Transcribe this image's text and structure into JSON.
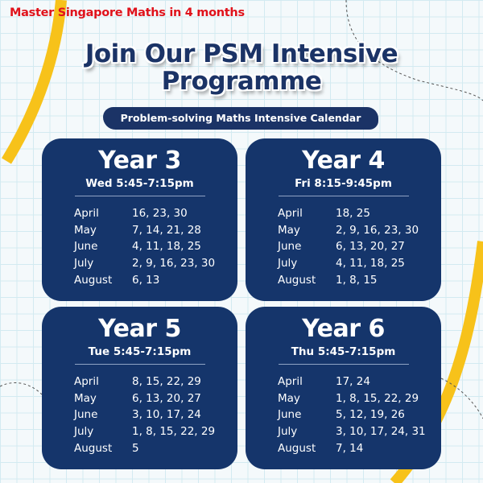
{
  "tagline": "Master Singapore Maths in 4 months",
  "title_line1": "Join Our PSM Intensive",
  "title_line2": "Programme",
  "subtitle": "Problem-solving Maths Intensive Calendar",
  "colors": {
    "navy": "#15356b",
    "accent_red": "#e0121b",
    "accent_yellow": "#f7c21a"
  },
  "cards": [
    {
      "year": "Year 3",
      "time": "Wed 5:45-7:15pm",
      "rows": [
        {
          "month": "April",
          "dates": "16, 23, 30"
        },
        {
          "month": "May",
          "dates": "7, 14, 21, 28"
        },
        {
          "month": "June",
          "dates": "4, 11, 18, 25"
        },
        {
          "month": "July",
          "dates": "2, 9, 16, 23, 30"
        },
        {
          "month": "August",
          "dates": "6, 13"
        }
      ]
    },
    {
      "year": "Year 4",
      "time": "Fri 8:15-9:45pm",
      "rows": [
        {
          "month": "April",
          "dates": "18, 25"
        },
        {
          "month": "May",
          "dates": "2, 9, 16, 23, 30"
        },
        {
          "month": "June",
          "dates": "6, 13, 20, 27"
        },
        {
          "month": "July",
          "dates": "4, 11, 18, 25"
        },
        {
          "month": "August",
          "dates": "1, 8, 15"
        }
      ]
    },
    {
      "year": "Year 5",
      "time": "Tue 5:45-7:15pm",
      "rows": [
        {
          "month": "April",
          "dates": "8, 15, 22, 29"
        },
        {
          "month": "May",
          "dates": "6, 13, 20, 27"
        },
        {
          "month": "June",
          "dates": "3, 10, 17, 24"
        },
        {
          "month": "July",
          "dates": "1, 8, 15, 22, 29"
        },
        {
          "month": "August",
          "dates": "5"
        }
      ]
    },
    {
      "year": "Year 6",
      "time": "Thu 5:45-7:15pm",
      "rows": [
        {
          "month": "April",
          "dates": "17, 24"
        },
        {
          "month": "May",
          "dates": "1, 8, 15, 22, 29"
        },
        {
          "month": "June",
          "dates": "5, 12, 19, 26"
        },
        {
          "month": "July",
          "dates": "3, 10, 17, 24, 31"
        },
        {
          "month": "August",
          "dates": "7, 14"
        }
      ]
    }
  ]
}
